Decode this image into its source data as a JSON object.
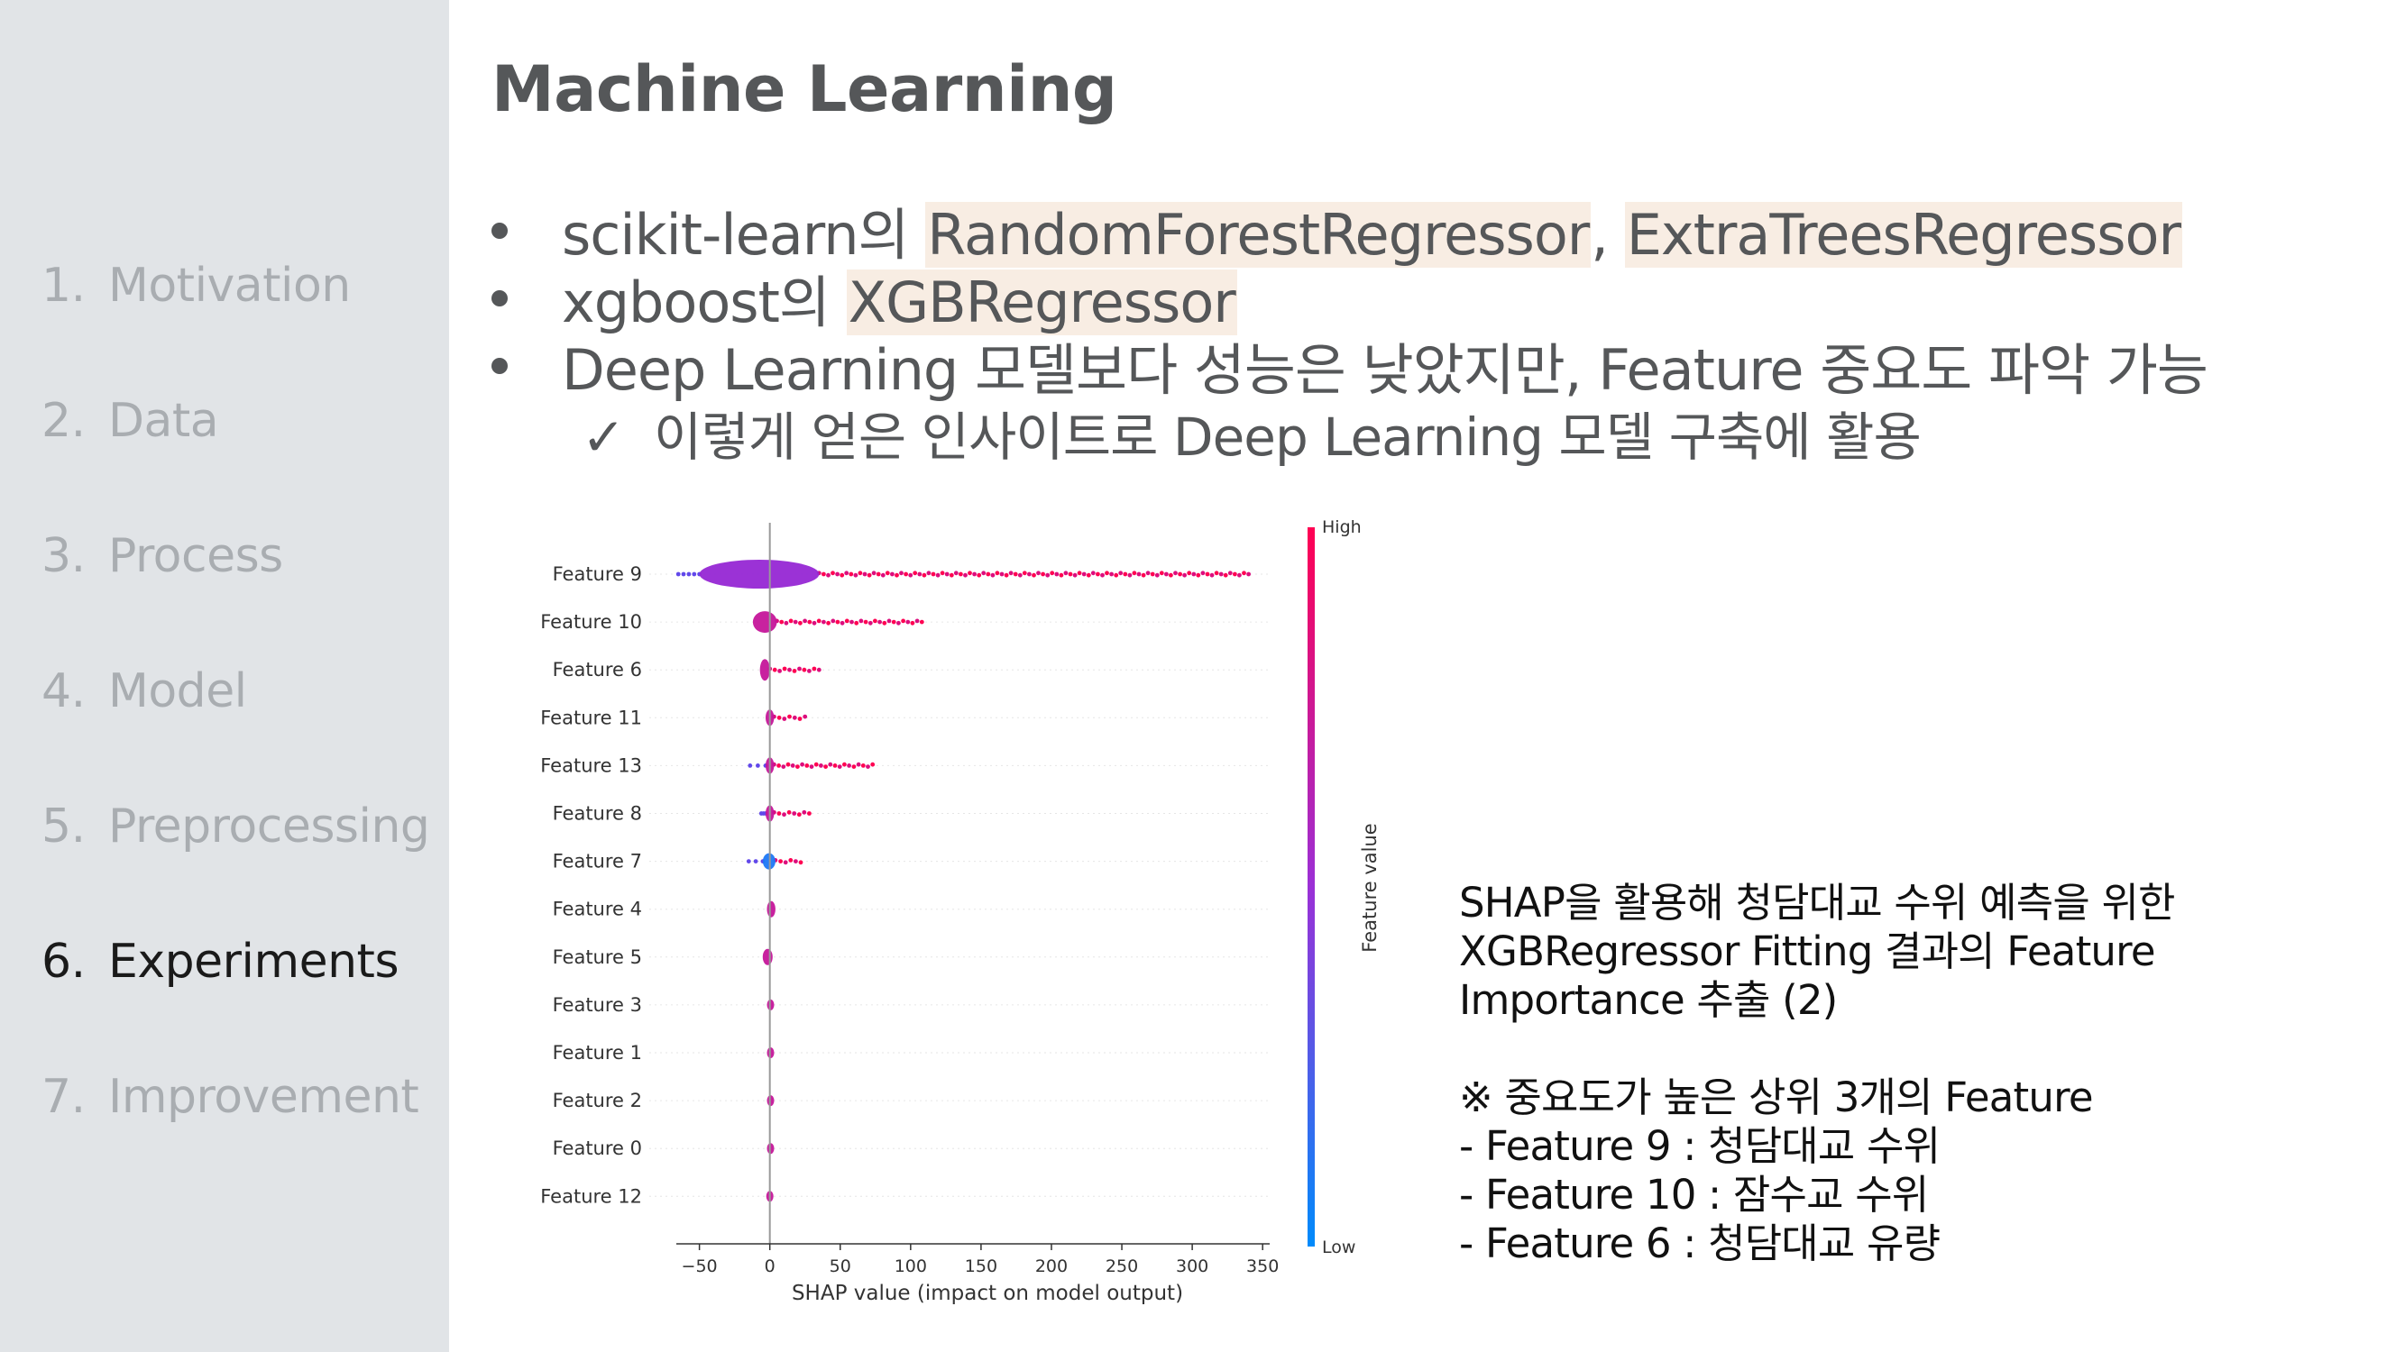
{
  "sidebar": {
    "items": [
      {
        "num": "1.",
        "label": "Motivation",
        "active": false
      },
      {
        "num": "2.",
        "label": "Data",
        "active": false
      },
      {
        "num": "3.",
        "label": "Process",
        "active": false
      },
      {
        "num": "4.",
        "label": "Model",
        "active": false
      },
      {
        "num": "5.",
        "label": "Preprocessing",
        "active": false
      },
      {
        "num": "6.",
        "label": "Experiments",
        "active": true
      },
      {
        "num": "7.",
        "label": "Improvement",
        "active": false
      }
    ]
  },
  "header": {
    "title": "Machine Learning"
  },
  "bullets": {
    "b1_pre": "scikit-learn의 ",
    "b1_hl1": "RandomForestRegressor",
    "b1_sep": ", ",
    "b1_hl2": "ExtraTreesRegressor",
    "b2_pre": "xgboost의 ",
    "b2_hl": "XGBRegressor",
    "b3": "Deep Learning 모델보다 성능은 낮았지만, Feature 중요도 파악 가능",
    "check_mark": "✓",
    "sub": "이렇게 얻은 인사이트로 Deep Learning 모델 구축에 활용"
  },
  "chart_data": {
    "type": "scatter",
    "subtype": "shap-summary-beeswarm",
    "title": "",
    "xlabel": "SHAP value (impact on model output)",
    "ylabel": "",
    "xlim": [
      -60,
      355
    ],
    "xticks": [
      -50,
      0,
      50,
      100,
      150,
      200,
      250,
      300,
      350
    ],
    "xtick_labels": [
      "−50",
      "0",
      "50",
      "100",
      "150",
      "200",
      "250",
      "300",
      "350"
    ],
    "categories": [
      "Feature 9",
      "Feature 10",
      "Feature 6",
      "Feature 11",
      "Feature 13",
      "Feature 8",
      "Feature 7",
      "Feature 4",
      "Feature 5",
      "Feature 3",
      "Feature 1",
      "Feature 2",
      "Feature 0",
      "Feature 12"
    ],
    "features": [
      {
        "name": "Feature 9",
        "min": -65,
        "max": 340,
        "core": [
          -50,
          35
        ]
      },
      {
        "name": "Feature 10",
        "min": -12,
        "max": 108,
        "core": [
          -12,
          5
        ]
      },
      {
        "name": "Feature 6",
        "min": -8,
        "max": 35,
        "core": [
          -7,
          0
        ]
      },
      {
        "name": "Feature 11",
        "min": -5,
        "max": 25,
        "core": [
          -3,
          3
        ]
      },
      {
        "name": "Feature 13",
        "min": -14,
        "max": 73,
        "core": [
          -3,
          3
        ]
      },
      {
        "name": "Feature 8",
        "min": -6,
        "max": 28,
        "core": [
          -3,
          3
        ]
      },
      {
        "name": "Feature 7",
        "min": -15,
        "max": 22,
        "core": [
          -5,
          4
        ]
      },
      {
        "name": "Feature 4",
        "min": -2,
        "max": 4,
        "core": [
          -2,
          4
        ]
      },
      {
        "name": "Feature 5",
        "min": -7,
        "max": 4,
        "core": [
          -5,
          2
        ]
      },
      {
        "name": "Feature 3",
        "min": -1,
        "max": 2,
        "core": [
          -1,
          2
        ]
      },
      {
        "name": "Feature 1",
        "min": -1,
        "max": 2,
        "core": [
          -1,
          2
        ]
      },
      {
        "name": "Feature 2",
        "min": -1,
        "max": 2,
        "core": [
          -1,
          2
        ]
      },
      {
        "name": "Feature 0",
        "min": -1,
        "max": 2,
        "core": [
          -1,
          2
        ]
      },
      {
        "name": "Feature 12",
        "min": -1,
        "max": 1,
        "core": [
          -1,
          1
        ]
      }
    ],
    "colorbar": {
      "label": "Feature value",
      "high": "High",
      "low": "Low",
      "high_color": "#ff0052",
      "mid_color": "#8a2be2",
      "low_color": "#008bfb"
    },
    "legend": "right"
  },
  "notes": {
    "line1": "SHAP을 활용해 청담대교 수위 예측을 위한",
    "line2": "XGBRegressor Fitting 결과의 Feature",
    "line3": "Importance 추출 (2)",
    "line4": "※ 중요도가 높은 상위 3개의 Feature",
    "line5": "- Feature 9 : 청담대교 수위",
    "line6": "- Feature 10 : 잠수교 수위",
    "line7": "- Feature 6 : 청담대교 유량"
  },
  "colors": {
    "sidebar_bg": "#e1e4e7",
    "nav_inactive": "#a9adb1",
    "nav_active": "#1a1a1a",
    "highlight": "#f8ede3",
    "text": "#555759"
  }
}
